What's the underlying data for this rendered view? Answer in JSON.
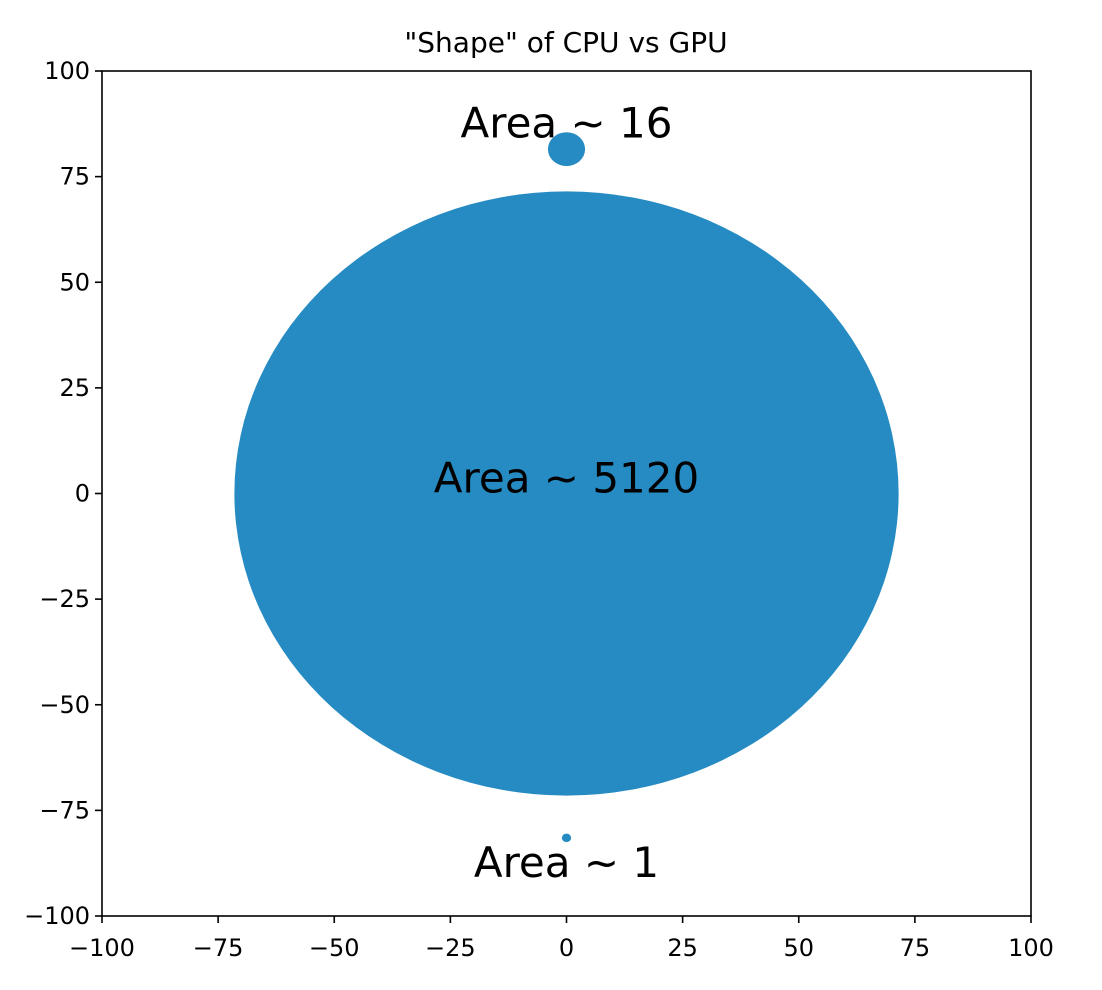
{
  "chart_data": {
    "type": "scatter",
    "title": "\"Shape\" of CPU vs GPU",
    "xlabel": "",
    "ylabel": "",
    "xlim": [
      -100,
      100
    ],
    "ylim": [
      -100,
      100
    ],
    "grid": false,
    "legend": "none",
    "series_color": "#268bc2",
    "xticks": [
      {
        "value": -100,
        "label": "−100"
      },
      {
        "value": -75,
        "label": "−75"
      },
      {
        "value": -50,
        "label": "−50"
      },
      {
        "value": -25,
        "label": "−25"
      },
      {
        "value": 0,
        "label": "0"
      },
      {
        "value": 25,
        "label": "25"
      },
      {
        "value": 50,
        "label": "50"
      },
      {
        "value": 75,
        "label": "75"
      },
      {
        "value": 100,
        "label": "100"
      }
    ],
    "yticks": [
      {
        "value": 100,
        "label": "100"
      },
      {
        "value": 75,
        "label": "75"
      },
      {
        "value": 50,
        "label": "50"
      },
      {
        "value": 25,
        "label": "25"
      },
      {
        "value": 0,
        "label": "0"
      },
      {
        "value": -25,
        "label": "−25"
      },
      {
        "value": -50,
        "label": "−50"
      },
      {
        "value": -75,
        "label": "−75"
      },
      {
        "value": -100,
        "label": "−100"
      }
    ],
    "points": [
      {
        "x": 0,
        "y": 81.5,
        "radius": 4.0,
        "area": 16
      },
      {
        "x": 0,
        "y": 0,
        "radius": 71.5,
        "area": 5120
      },
      {
        "x": 0,
        "y": -81.5,
        "radius": 1.0,
        "area": 1
      }
    ],
    "annotations": [
      {
        "text": "Area ~ 16",
        "x": 0,
        "y": 87
      },
      {
        "text": "Area ~ 5120",
        "x": 0,
        "y": 3
      },
      {
        "text": "Area ~ 1",
        "x": 0,
        "y": -88
      }
    ]
  }
}
